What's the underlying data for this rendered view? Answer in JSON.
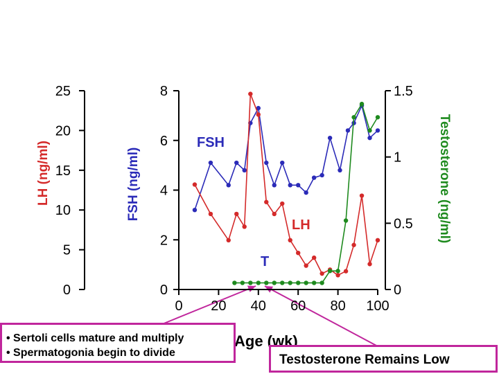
{
  "chart_data": {
    "type": "line",
    "title": "",
    "xlabel": "Age (wk)",
    "x_ticks": [
      "0",
      "20",
      "40",
      "60",
      "80",
      "100"
    ],
    "xlim": [
      0,
      100
    ],
    "axes": {
      "lh": {
        "label_main": "LH",
        "label_unit": "(ng/ml)",
        "ticks": [
          "0",
          "5",
          "10",
          "15",
          "20",
          "25"
        ],
        "ylim": [
          0,
          25
        ],
        "color": "#d42a2a"
      },
      "fsh": {
        "label": "FSH (ng/ml)",
        "ticks": [
          "0",
          "2",
          "4",
          "6",
          "8"
        ],
        "ylim": [
          0,
          8
        ],
        "color": "#2b2bb8"
      },
      "t": {
        "label": "Testosterone (ng/ml)",
        "ticks": [
          "0",
          "0.5",
          "1",
          "1.5"
        ],
        "ylim": [
          0,
          1.5
        ],
        "color": "#1e8a1e"
      }
    },
    "series": [
      {
        "name": "FSH",
        "axis": "fsh",
        "color": "#2b2bb8",
        "x": [
          8,
          16,
          25,
          29,
          33,
          36,
          40,
          44,
          48,
          52,
          56,
          60,
          64,
          68,
          72,
          76,
          81,
          85,
          88,
          92,
          96,
          100
        ],
        "y": [
          3.2,
          5.1,
          4.2,
          5.1,
          4.8,
          6.7,
          7.3,
          5.1,
          4.2,
          5.1,
          4.2,
          4.2,
          3.9,
          4.5,
          4.6,
          6.1,
          4.8,
          6.4,
          6.7,
          7.4,
          6.1,
          6.4
        ]
      },
      {
        "name": "LH",
        "axis": "lh",
        "color": "#d42a2a",
        "x": [
          8,
          16,
          25,
          29,
          33,
          36,
          40,
          44,
          48,
          52,
          56,
          60,
          64,
          68,
          72,
          76,
          80,
          84,
          88,
          92,
          96,
          100
        ],
        "y": [
          13.2,
          9.5,
          6.2,
          9.5,
          7.9,
          24.6,
          22.0,
          11.0,
          9.5,
          10.8,
          6.2,
          4.6,
          3.0,
          4.0,
          2.0,
          2.5,
          1.8,
          2.3,
          5.6,
          11.8,
          3.2,
          6.2
        ]
      },
      {
        "name": "T",
        "axis": "t",
        "color": "#1e8a1e",
        "x": [
          28,
          32,
          36,
          40,
          44,
          48,
          52,
          56,
          60,
          64,
          68,
          72,
          76,
          80,
          84,
          88,
          92,
          96,
          100
        ],
        "y": [
          0.05,
          0.05,
          0.05,
          0.05,
          0.05,
          0.05,
          0.05,
          0.05,
          0.05,
          0.05,
          0.05,
          0.05,
          0.14,
          0.14,
          0.52,
          1.3,
          1.4,
          1.2,
          1.3
        ]
      }
    ],
    "inline_labels": [
      {
        "text": "FSH",
        "color": "#2b2bb8"
      },
      {
        "text": "LH",
        "color": "#d42a2a"
      },
      {
        "text": "T",
        "color": "#2b2bb8"
      }
    ]
  },
  "annotations": {
    "left_box": [
      "• Sertoli cells mature and multiply",
      "• Spermatogonia begin to divide"
    ],
    "right_box": "Testosterone Remains Low",
    "arrow_color": "#c0269c"
  }
}
